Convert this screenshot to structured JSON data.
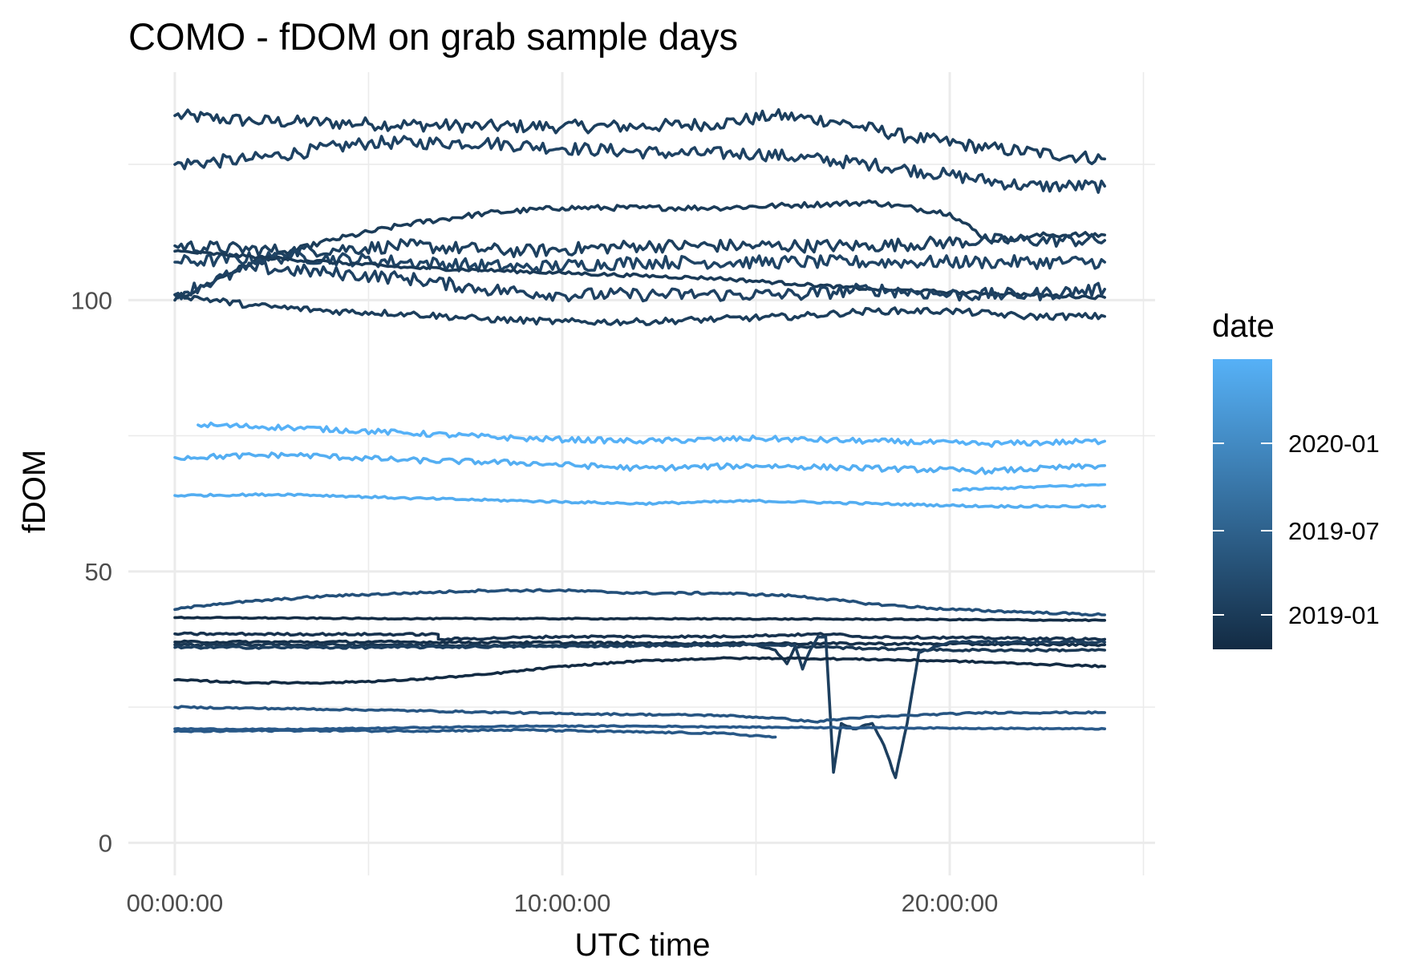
{
  "chart_data": {
    "type": "line",
    "title": "COMO - fDOM on grab sample days",
    "xlabel": "UTC time",
    "ylabel": "fDOM",
    "x_unit": "hours",
    "xlim": [
      -1.2,
      25.3
    ],
    "ylim": [
      -6,
      142
    ],
    "x_ticks": [
      {
        "value": 0,
        "label": "00:00:00"
      },
      {
        "value": 10,
        "label": "10:00:00"
      },
      {
        "value": 20,
        "label": "20:00:00"
      }
    ],
    "y_ticks": [
      {
        "value": 0,
        "label": "0"
      },
      {
        "value": 50,
        "label": "50"
      },
      {
        "value": 100,
        "label": "100"
      }
    ],
    "grid": true,
    "legend": {
      "title": "date",
      "placement": "right",
      "type": "colorbar",
      "gradient": [
        "#132B43",
        "#56B1F7"
      ],
      "breaks": [
        "2020-01",
        "2019-07",
        "2019-01"
      ]
    },
    "series": [
      {
        "color": "#1c3f5e",
        "noise": 1.2,
        "x": [
          0,
          2,
          5,
          8,
          10,
          12,
          14,
          15.5,
          17,
          19,
          21,
          24
        ],
        "y": [
          134,
          133,
          132.5,
          132,
          132,
          132,
          132.5,
          134,
          133,
          130,
          128,
          126
        ]
      },
      {
        "color": "#1e4263",
        "noise": 1.2,
        "x": [
          0,
          2,
          5,
          8,
          10,
          13,
          15,
          18,
          20,
          22,
          24
        ],
        "y": [
          125,
          126,
          129,
          129,
          128,
          127,
          127,
          125,
          123,
          121,
          121
        ]
      },
      {
        "color": "#1b3c59",
        "noise": 0.5,
        "x": [
          0,
          2,
          4,
          6,
          8,
          10,
          12,
          14,
          16,
          18,
          20,
          21,
          22.5,
          24
        ],
        "y": [
          100,
          107,
          111,
          114,
          116,
          117,
          117,
          117,
          117.5,
          118,
          116,
          111,
          112,
          112
        ]
      },
      {
        "color": "#1d405f",
        "noise": 1.2,
        "x": [
          0,
          3,
          6,
          9,
          12,
          15,
          18,
          21,
          24
        ],
        "y": [
          110,
          109,
          110,
          109,
          110,
          110,
          110,
          111,
          111
        ]
      },
      {
        "color": "#1f4465",
        "noise": 1.2,
        "x": [
          0,
          3,
          6,
          9,
          12,
          15,
          18,
          21,
          24
        ],
        "y": [
          107,
          108,
          107,
          106,
          107,
          107,
          107,
          107,
          107
        ]
      },
      {
        "color": "#1a3a57",
        "noise": 0.3,
        "x": [
          0,
          2,
          4,
          6,
          8,
          10,
          12,
          14,
          16,
          18,
          20,
          22,
          24
        ],
        "y": [
          109,
          108,
          107,
          106,
          105.5,
          105,
          104.5,
          104,
          103,
          102,
          101.5,
          101,
          100.5
        ]
      },
      {
        "color": "#1e4162",
        "noise": 1.2,
        "x": [
          0,
          2,
          4,
          6,
          8,
          10,
          12,
          14,
          16,
          18,
          20,
          22,
          24
        ],
        "y": [
          101,
          106,
          105,
          104,
          102,
          101,
          101,
          101,
          101,
          102,
          101,
          101,
          102
        ]
      },
      {
        "color": "#1c3e5c",
        "noise": 0.6,
        "x": [
          0,
          2,
          4,
          6,
          8,
          10,
          12,
          14,
          16,
          18,
          20,
          22,
          24
        ],
        "y": [
          101,
          99,
          98,
          97.5,
          96.5,
          96,
          96,
          96.5,
          97,
          98,
          98,
          97,
          97
        ]
      },
      {
        "color": "#56b1f7",
        "noise": 0.5,
        "x": [
          0.6,
          3,
          6,
          9,
          12,
          15,
          18,
          21,
          24
        ],
        "y": [
          77,
          76.5,
          75.5,
          74.5,
          74,
          74.5,
          74,
          73.5,
          74
        ]
      },
      {
        "color": "#54aef2",
        "noise": 0.5,
        "x": [
          0,
          3,
          6,
          9,
          12,
          15,
          18,
          21,
          24
        ],
        "y": [
          71,
          71.5,
          70.5,
          70,
          69,
          69.5,
          69,
          68.5,
          69.5
        ]
      },
      {
        "color": "#55b0f5",
        "noise": 0.2,
        "x": [
          20.1,
          22,
          24
        ],
        "y": [
          65,
          65.5,
          66
        ]
      },
      {
        "color": "#53adf1",
        "noise": 0.2,
        "x": [
          0,
          3,
          6,
          9,
          12,
          15,
          18,
          21,
          24
        ],
        "y": [
          64,
          64.2,
          63.5,
          63,
          62.5,
          63,
          62.5,
          62,
          62
        ]
      },
      {
        "color": "#24507a",
        "noise": 0.2,
        "x": [
          0,
          1,
          2,
          4,
          6,
          8,
          10,
          12,
          14,
          16,
          18,
          20,
          22,
          24
        ],
        "y": [
          43,
          44,
          44.5,
          45.5,
          46,
          46.5,
          46.5,
          46,
          46,
          45.5,
          44,
          43,
          42.5,
          42
        ]
      },
      {
        "color": "#142d46",
        "noise": 0.1,
        "x": [
          0,
          6,
          12,
          18,
          24
        ],
        "y": [
          41.5,
          41.3,
          41.3,
          41.2,
          41
        ]
      },
      {
        "color": "#17324e",
        "noise": 0.2,
        "x": [
          0,
          6.8,
          6.8,
          10,
          14,
          17,
          17.5,
          20,
          24
        ],
        "y": [
          38.5,
          38.4,
          37.5,
          38,
          38,
          38.5,
          38,
          37.8,
          37.5
        ]
      },
      {
        "color": "#15304a",
        "noise": 0.2,
        "x": [
          0,
          6,
          12,
          18,
          24
        ],
        "y": [
          37,
          37,
          36.8,
          36.7,
          36.5
        ]
      },
      {
        "color": "#1a3854",
        "noise": 0.2,
        "x": [
          0,
          5,
          10,
          15,
          15.5,
          15.8,
          16,
          16.8,
          17,
          18,
          20,
          24
        ],
        "y": [
          36.5,
          36.5,
          36.3,
          36.5,
          35.5,
          33,
          36,
          36.2,
          36,
          35.8,
          35.5,
          35.5
        ]
      },
      {
        "color": "#1d3f5f",
        "noise": 0.2,
        "x": [
          0,
          5,
          10,
          15,
          16,
          16.2,
          16.4,
          16.6,
          16.8,
          17,
          17.2,
          17.5,
          18,
          18.3,
          18.6,
          18.9,
          19.2,
          20,
          22,
          24
        ],
        "y": [
          36,
          36,
          36.2,
          36.5,
          36.5,
          32,
          35.5,
          38,
          38,
          13,
          22,
          21,
          22,
          18,
          12,
          22,
          35,
          37,
          37,
          37
        ]
      },
      {
        "color": "#132b43",
        "noise": 0.15,
        "x": [
          0,
          2,
          4,
          6,
          8,
          10,
          12,
          14,
          16,
          18,
          20,
          22,
          24
        ],
        "y": [
          30,
          29.5,
          29.5,
          30,
          31,
          32.5,
          33.5,
          34,
          34,
          33.8,
          33.5,
          33,
          32.5
        ]
      },
      {
        "color": "#275582",
        "noise": 0.15,
        "x": [
          0,
          5,
          10,
          14,
          15.5,
          16.5,
          17.5,
          19,
          21,
          24
        ],
        "y": [
          25,
          24.5,
          23.8,
          23.5,
          23,
          22.3,
          23,
          23.5,
          24,
          24
        ]
      },
      {
        "color": "#29598a",
        "noise": 0.1,
        "x": [
          0,
          3,
          6,
          9,
          12,
          15,
          18,
          21,
          24
        ],
        "y": [
          21,
          20.9,
          21.2,
          21.5,
          21.5,
          21.3,
          21.2,
          21.1,
          21
        ]
      },
      {
        "color": "#285887",
        "noise": 0.15,
        "x": [
          0,
          3,
          6,
          9,
          12,
          14,
          15.5
        ],
        "y": [
          20.5,
          20.7,
          20.6,
          20.8,
          20.4,
          20.2,
          19.5
        ]
      }
    ]
  }
}
